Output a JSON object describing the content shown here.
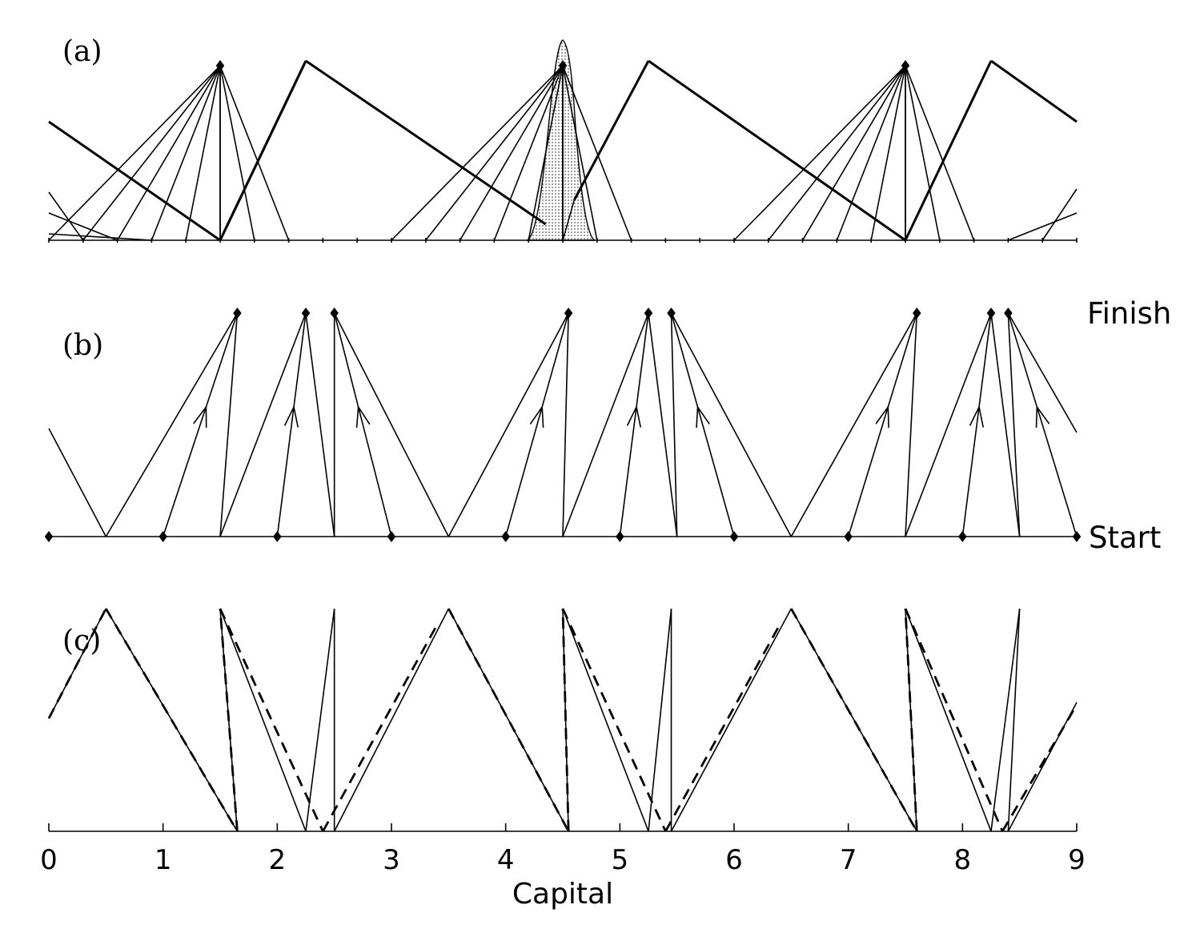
{
  "labels": {
    "panel_a": "(a)",
    "panel_b": "(b)",
    "panel_c": "(c)",
    "finish": "Finish",
    "start": "Start",
    "x_axis_title": "Capital"
  },
  "x_ticks": [
    "0",
    "1",
    "2",
    "3",
    "4",
    "5",
    "6",
    "7",
    "8",
    "9"
  ],
  "x_range": [
    0,
    9
  ],
  "panel_a": {
    "apexes": [
      1.5,
      4.5,
      7.5
    ],
    "fan_base_points": [
      0,
      0.3,
      0.6,
      0.9,
      1.2,
      1.5,
      1.8,
      2.1,
      2.4,
      2.7,
      3.0,
      3.3,
      3.6,
      3.9,
      4.2,
      4.5,
      4.8,
      5.1,
      5.4,
      5.7,
      6.0,
      6.3,
      6.6,
      6.9,
      7.2,
      7.5,
      7.8,
      8.1,
      8.4,
      8.7,
      9.0
    ],
    "zigzag_peaks": [
      2.25,
      5.25,
      8.25
    ],
    "zigzag_troughs": [
      1.5,
      4.5,
      7.5
    ]
  },
  "panel_b": {
    "start_points": [
      0,
      1,
      2,
      3,
      4,
      5,
      6,
      7,
      8,
      9
    ],
    "finish_points": [
      1.65,
      2.25,
      2.5,
      4.55,
      5.25,
      5.45,
      7.6,
      8.25,
      8.4
    ]
  },
  "panel_c": {
    "solid_peaks": [
      0.5,
      1.5,
      2.5,
      3.5,
      4.5,
      5.5,
      6.5,
      7.5,
      8.5
    ],
    "solid_troughs": [
      1.65,
      2.25,
      2.5,
      4.55,
      5.25,
      5.45,
      7.6,
      8.25,
      8.4
    ]
  }
}
